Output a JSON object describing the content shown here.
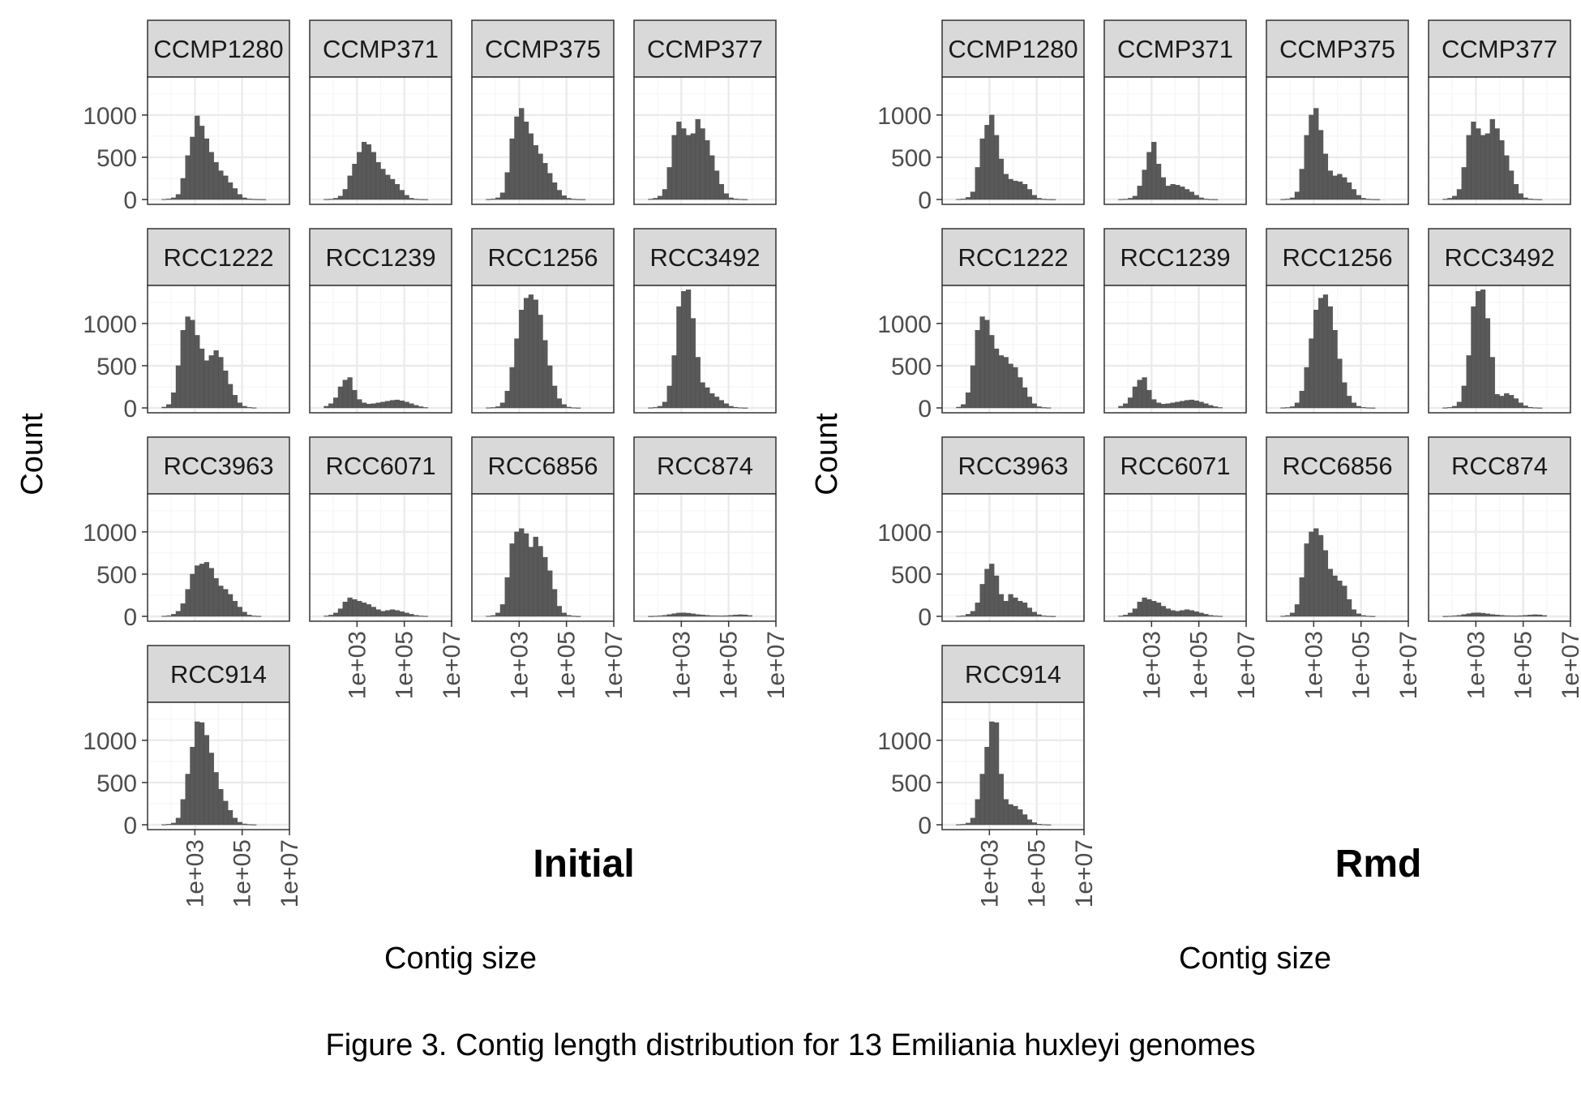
{
  "caption": "Figure 3. Contig length distribution for 13 Emiliania huxleyi genomes",
  "colors": {
    "bar": "#595959",
    "bar_edge": "#4a4a4a",
    "strip": "#d9d9d9",
    "grid_major": "#ebebeb",
    "grid_minor": "#f5f5f5",
    "frame": "#333333",
    "tick_text": "#4d4d4d"
  },
  "chart_data": [
    {
      "type": "bar",
      "title": "Initial",
      "xlabel": "Contig size",
      "ylabel": "Count",
      "x_scale": "log10",
      "xlim": [
        10,
        10000000
      ],
      "x_ticks": [
        1000,
        100000,
        10000000
      ],
      "x_tick_labels": [
        "1e+03",
        "1e+05",
        "1e+07"
      ],
      "ylim": [
        0,
        1450
      ],
      "y_ticks": [
        0,
        500,
        1000
      ],
      "y_tick_labels": [
        "0",
        "500",
        "1000"
      ],
      "grid": true,
      "bin_log10_edges": {
        "start": 1.6,
        "width": 0.2
      },
      "series": [
        {
          "name": "CCMP1280",
          "values": [
            3,
            8,
            20,
            60,
            250,
            520,
            740,
            990,
            870,
            720,
            560,
            440,
            340,
            280,
            200,
            130,
            60,
            20,
            8,
            4,
            2,
            1
          ]
        },
        {
          "name": "CCMP371",
          "values": [
            2,
            5,
            15,
            40,
            120,
            280,
            420,
            560,
            680,
            650,
            560,
            440,
            360,
            290,
            240,
            180,
            110,
            50,
            15,
            5,
            2,
            1
          ]
        },
        {
          "name": "CCMP375",
          "values": [
            2,
            6,
            20,
            80,
            320,
            720,
            980,
            1080,
            920,
            780,
            640,
            540,
            430,
            310,
            200,
            110,
            45,
            15,
            5,
            2,
            1,
            0
          ]
        },
        {
          "name": "CCMP377",
          "values": [
            5,
            15,
            40,
            120,
            380,
            760,
            920,
            840,
            760,
            780,
            950,
            840,
            700,
            520,
            340,
            180,
            70,
            20,
            8,
            3,
            1,
            0
          ]
        },
        {
          "name": "RCC1222",
          "values": [
            10,
            40,
            180,
            500,
            920,
            1080,
            1040,
            860,
            700,
            560,
            620,
            680,
            600,
            440,
            280,
            150,
            60,
            20,
            6,
            2,
            0,
            0
          ]
        },
        {
          "name": "RCC1239",
          "values": [
            20,
            50,
            120,
            250,
            330,
            360,
            210,
            100,
            60,
            45,
            50,
            60,
            70,
            80,
            90,
            95,
            85,
            70,
            50,
            30,
            15,
            5
          ]
        },
        {
          "name": "RCC1256",
          "values": [
            2,
            5,
            15,
            60,
            200,
            480,
            820,
            1160,
            1300,
            1340,
            1280,
            1100,
            800,
            500,
            260,
            110,
            40,
            10,
            3,
            1,
            0,
            0
          ]
        },
        {
          "name": "RCC3492",
          "values": [
            2,
            6,
            20,
            70,
            260,
            620,
            1200,
            1380,
            1400,
            1060,
            600,
            300,
            240,
            170,
            130,
            90,
            50,
            20,
            8,
            3,
            1,
            0
          ]
        },
        {
          "name": "RCC3963",
          "values": [
            3,
            8,
            25,
            60,
            150,
            320,
            500,
            600,
            620,
            640,
            570,
            450,
            360,
            320,
            260,
            180,
            110,
            50,
            15,
            5,
            2,
            0
          ]
        },
        {
          "name": "RCC6071",
          "values": [
            5,
            15,
            40,
            90,
            170,
            220,
            200,
            180,
            160,
            140,
            110,
            80,
            60,
            70,
            80,
            70,
            55,
            40,
            25,
            12,
            5,
            2
          ]
        },
        {
          "name": "RCC6856",
          "values": [
            3,
            10,
            40,
            140,
            460,
            860,
            1000,
            1040,
            980,
            820,
            940,
            830,
            700,
            540,
            320,
            120,
            40,
            12,
            4,
            1,
            0,
            0
          ]
        },
        {
          "name": "RCC874",
          "values": [
            1,
            3,
            6,
            12,
            22,
            32,
            40,
            42,
            38,
            30,
            22,
            16,
            12,
            8,
            6,
            5,
            8,
            12,
            16,
            20,
            18,
            10
          ]
        },
        {
          "name": "RCC914",
          "values": [
            2,
            6,
            20,
            80,
            300,
            600,
            920,
            1220,
            1210,
            1060,
            850,
            620,
            420,
            280,
            170,
            80,
            30,
            10,
            4,
            1,
            0,
            0
          ]
        }
      ]
    },
    {
      "type": "bar",
      "title": "Rmd",
      "xlabel": "Contig size",
      "ylabel": "Count",
      "x_scale": "log10",
      "xlim": [
        10,
        10000000
      ],
      "x_ticks": [
        1000,
        100000,
        10000000
      ],
      "x_tick_labels": [
        "1e+03",
        "1e+05",
        "1e+07"
      ],
      "ylim": [
        0,
        1450
      ],
      "y_ticks": [
        0,
        500,
        1000
      ],
      "y_tick_labels": [
        "0",
        "500",
        "1000"
      ],
      "grid": true,
      "bin_log10_edges": {
        "start": 1.6,
        "width": 0.2
      },
      "series": [
        {
          "name": "CCMP1280",
          "values": [
            3,
            8,
            25,
            90,
            380,
            720,
            880,
            1000,
            760,
            480,
            300,
            240,
            220,
            210,
            180,
            120,
            50,
            15,
            5,
            2,
            1,
            0
          ]
        },
        {
          "name": "CCMP371",
          "values": [
            2,
            5,
            15,
            40,
            160,
            350,
            560,
            680,
            420,
            260,
            160,
            180,
            170,
            150,
            120,
            90,
            50,
            20,
            6,
            2,
            1,
            0
          ]
        },
        {
          "name": "CCMP375",
          "values": [
            2,
            6,
            20,
            90,
            360,
            760,
            1000,
            1080,
            820,
            540,
            340,
            280,
            300,
            260,
            200,
            120,
            50,
            15,
            5,
            2,
            1,
            0
          ]
        },
        {
          "name": "CCMP377",
          "values": [
            5,
            15,
            40,
            120,
            380,
            760,
            920,
            840,
            760,
            780,
            950,
            840,
            700,
            520,
            340,
            180,
            70,
            20,
            8,
            3,
            1,
            0
          ]
        },
        {
          "name": "RCC1222",
          "values": [
            10,
            40,
            180,
            500,
            920,
            1080,
            1040,
            860,
            700,
            620,
            600,
            520,
            480,
            360,
            240,
            130,
            50,
            15,
            5,
            2,
            0,
            0
          ]
        },
        {
          "name": "RCC1239",
          "values": [
            20,
            50,
            120,
            250,
            330,
            360,
            210,
            100,
            60,
            45,
            50,
            60,
            70,
            80,
            90,
            95,
            85,
            70,
            50,
            30,
            15,
            5
          ]
        },
        {
          "name": "RCC1256",
          "values": [
            2,
            5,
            15,
            60,
            200,
            480,
            820,
            1160,
            1300,
            1340,
            1200,
            920,
            580,
            300,
            140,
            60,
            20,
            6,
            2,
            1,
            0,
            0
          ]
        },
        {
          "name": "RCC3492",
          "values": [
            2,
            6,
            20,
            70,
            260,
            620,
            1200,
            1380,
            1400,
            1060,
            600,
            160,
            140,
            170,
            150,
            110,
            60,
            25,
            8,
            3,
            1,
            0
          ]
        },
        {
          "name": "RCC3963",
          "values": [
            3,
            8,
            25,
            60,
            160,
            380,
            560,
            620,
            480,
            260,
            180,
            260,
            220,
            180,
            160,
            100,
            50,
            20,
            6,
            2,
            1,
            0
          ]
        },
        {
          "name": "RCC6071",
          "values": [
            5,
            15,
            40,
            90,
            170,
            220,
            200,
            180,
            160,
            120,
            90,
            70,
            60,
            70,
            80,
            70,
            55,
            40,
            25,
            12,
            5,
            2
          ]
        },
        {
          "name": "RCC6856",
          "values": [
            3,
            10,
            40,
            140,
            460,
            860,
            1000,
            1040,
            960,
            780,
            560,
            480,
            420,
            360,
            200,
            80,
            30,
            10,
            3,
            1,
            0,
            0
          ]
        },
        {
          "name": "RCC874",
          "values": [
            1,
            3,
            6,
            12,
            22,
            32,
            40,
            42,
            38,
            30,
            22,
            16,
            12,
            8,
            6,
            5,
            8,
            12,
            16,
            20,
            18,
            10
          ]
        },
        {
          "name": "RCC914",
          "values": [
            2,
            6,
            20,
            80,
            300,
            600,
            920,
            1220,
            1210,
            600,
            300,
            240,
            220,
            180,
            120,
            60,
            25,
            8,
            3,
            1,
            0,
            0
          ]
        }
      ]
    }
  ]
}
